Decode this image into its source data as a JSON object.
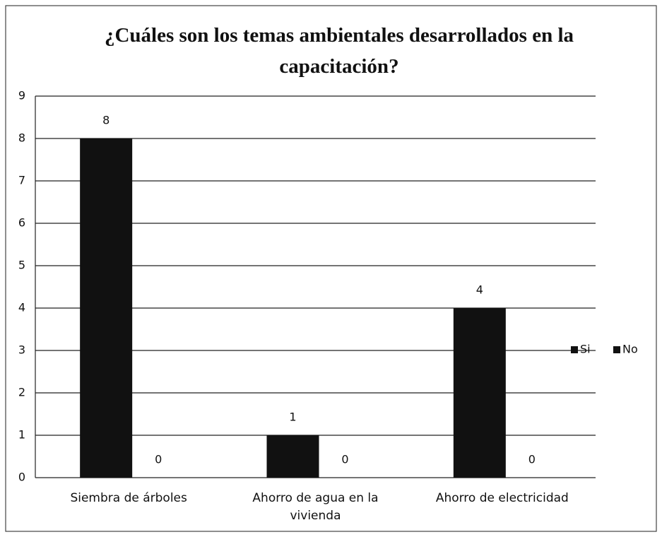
{
  "chart_data": {
    "type": "bar",
    "title": "¿Cuáles son los temas ambientales desarrollados en la capacitación?",
    "categories": [
      "Siembra de árboles",
      "Ahorro de agua en la vivienda",
      "Ahorro de electricidad"
    ],
    "series": [
      {
        "name": "Si",
        "color": "#111111",
        "values": [
          8,
          1,
          4
        ]
      },
      {
        "name": "No",
        "color": "#111111",
        "values": [
          0,
          0,
          0
        ]
      }
    ],
    "ylim": [
      0,
      9
    ],
    "yticks": [
      0,
      1,
      2,
      3,
      4,
      5,
      6,
      7,
      8,
      9
    ],
    "grid": true,
    "legend": "right"
  }
}
